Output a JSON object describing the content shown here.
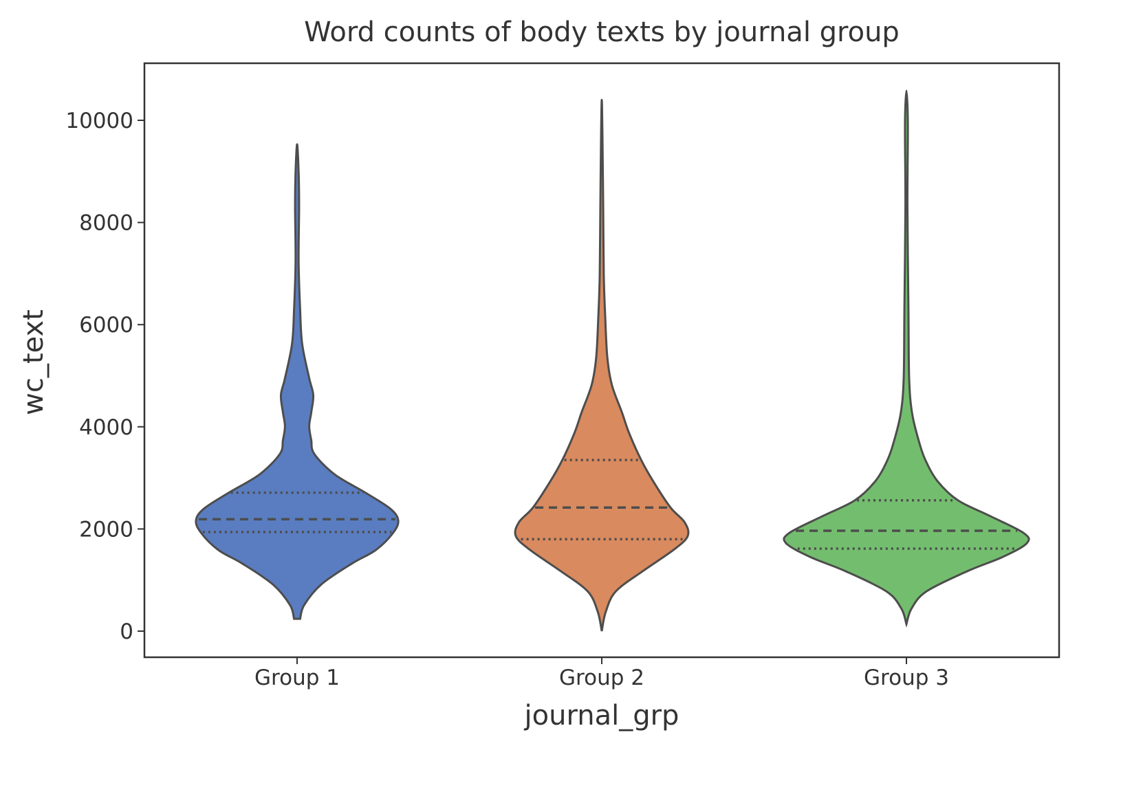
{
  "chart_data": {
    "type": "violin",
    "title": "Word counts of body texts by journal group",
    "xlabel": "journal_grp",
    "ylabel": "wc_text",
    "categories": [
      "Group 1",
      "Group 2",
      "Group 3"
    ],
    "ylim": [
      -500,
      11100
    ],
    "yticks": [
      0,
      2000,
      4000,
      6000,
      8000,
      10000
    ],
    "ytick_labels": [
      "0",
      "2000",
      "4000",
      "6000",
      "8000",
      "10000"
    ],
    "grid": false,
    "inner": "quartile",
    "series": [
      {
        "category": "Group 1",
        "color": "#5A7DC1",
        "min": 240,
        "q1": 1940,
        "median": 2190,
        "q3": 2710,
        "max": 9530,
        "density_profile": [
          [
            240,
            0.03
          ],
          [
            510,
            0.07
          ],
          [
            915,
            0.24
          ],
          [
            1320,
            0.54
          ],
          [
            1590,
            0.78
          ],
          [
            1925,
            0.95
          ],
          [
            2170,
            1.0
          ],
          [
            2400,
            0.92
          ],
          [
            2705,
            0.68
          ],
          [
            3070,
            0.37
          ],
          [
            3470,
            0.17
          ],
          [
            3740,
            0.14
          ],
          [
            4010,
            0.12
          ],
          [
            4280,
            0.14
          ],
          [
            4620,
            0.16
          ],
          [
            4950,
            0.12
          ],
          [
            5625,
            0.05
          ],
          [
            6300,
            0.03
          ],
          [
            7240,
            0.015
          ],
          [
            8320,
            0.02
          ],
          [
            8990,
            0.015
          ],
          [
            9530,
            0
          ]
        ]
      },
      {
        "category": "Group 2",
        "color": "#D98A5E",
        "min": 0,
        "q1": 1800,
        "median": 2420,
        "q3": 3350,
        "max": 10400,
        "density_profile": [
          [
            0,
            0
          ],
          [
            380,
            0.04
          ],
          [
            780,
            0.14
          ],
          [
            1180,
            0.41
          ],
          [
            1590,
            0.71
          ],
          [
            1860,
            0.85
          ],
          [
            2130,
            0.82
          ],
          [
            2420,
            0.68
          ],
          [
            2930,
            0.51
          ],
          [
            3350,
            0.39
          ],
          [
            3880,
            0.27
          ],
          [
            4280,
            0.2
          ],
          [
            4820,
            0.1
          ],
          [
            5360,
            0.055
          ],
          [
            6160,
            0.034
          ],
          [
            6970,
            0.02
          ],
          [
            8320,
            0.014
          ],
          [
            9660,
            0.007
          ],
          [
            10400,
            0
          ]
        ]
      },
      {
        "category": "Group 3",
        "color": "#73BE6E",
        "min": 135,
        "q1": 1615,
        "median": 1965,
        "q3": 2560,
        "max": 10580,
        "density_profile": [
          [
            135,
            0
          ],
          [
            440,
            0.05
          ],
          [
            780,
            0.2
          ],
          [
            1180,
            0.61
          ],
          [
            1450,
            0.95
          ],
          [
            1720,
            1.19
          ],
          [
            1920,
            1.16
          ],
          [
            2260,
            0.82
          ],
          [
            2560,
            0.51
          ],
          [
            2930,
            0.31
          ],
          [
            3340,
            0.19
          ],
          [
            3740,
            0.12
          ],
          [
            4280,
            0.055
          ],
          [
            4950,
            0.027
          ],
          [
            6300,
            0.02
          ],
          [
            8320,
            0.01
          ],
          [
            9930,
            0.014
          ],
          [
            10580,
            0
          ]
        ]
      }
    ]
  }
}
